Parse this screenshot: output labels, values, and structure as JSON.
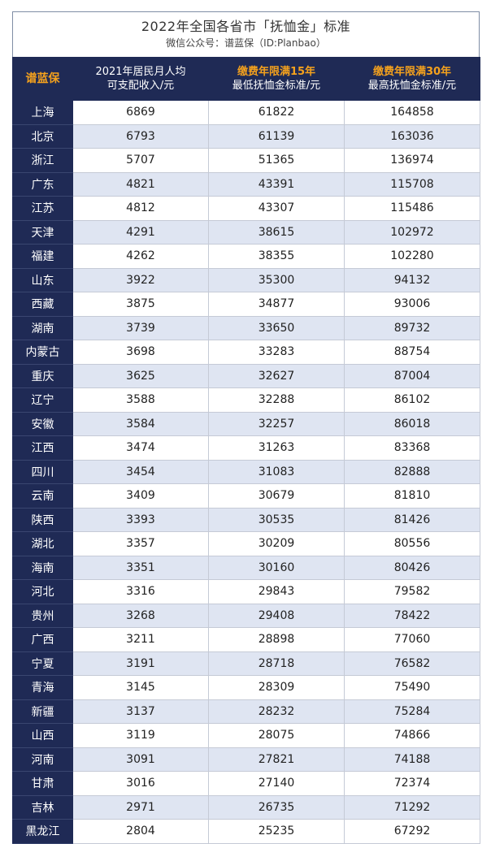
{
  "title": "2022年全国各省市「抚恤金」标准",
  "subtitle": "微信公众号：谱蓝保（ID:Planbao）",
  "header": {
    "brand": "谱蓝保",
    "col1_line1": "2021年居民月人均",
    "col1_line2": "可支配收入/元",
    "col2_line1": "缴费年限满15年",
    "col2_line2": "最低抚恤金标准/元",
    "col3_line1": "缴费年限满30年",
    "col3_line2": "最高抚恤金标准/元"
  },
  "rows": [
    {
      "province": "上海",
      "income": "6869",
      "min": "61822",
      "max": "164858"
    },
    {
      "province": "北京",
      "income": "6793",
      "min": "61139",
      "max": "163036"
    },
    {
      "province": "浙江",
      "income": "5707",
      "min": "51365",
      "max": "136974"
    },
    {
      "province": "广东",
      "income": "4821",
      "min": "43391",
      "max": "115708"
    },
    {
      "province": "江苏",
      "income": "4812",
      "min": "43307",
      "max": "115486"
    },
    {
      "province": "天津",
      "income": "4291",
      "min": "38615",
      "max": "102972"
    },
    {
      "province": "福建",
      "income": "4262",
      "min": "38355",
      "max": "102280"
    },
    {
      "province": "山东",
      "income": "3922",
      "min": "35300",
      "max": "94132"
    },
    {
      "province": "西藏",
      "income": "3875",
      "min": "34877",
      "max": "93006"
    },
    {
      "province": "湖南",
      "income": "3739",
      "min": "33650",
      "max": "89732"
    },
    {
      "province": "内蒙古",
      "income": "3698",
      "min": "33283",
      "max": "88754"
    },
    {
      "province": "重庆",
      "income": "3625",
      "min": "32627",
      "max": "87004"
    },
    {
      "province": "辽宁",
      "income": "3588",
      "min": "32288",
      "max": "86102"
    },
    {
      "province": "安徽",
      "income": "3584",
      "min": "32257",
      "max": "86018"
    },
    {
      "province": "江西",
      "income": "3474",
      "min": "31263",
      "max": "83368"
    },
    {
      "province": "四川",
      "income": "3454",
      "min": "31083",
      "max": "82888"
    },
    {
      "province": "云南",
      "income": "3409",
      "min": "30679",
      "max": "81810"
    },
    {
      "province": "陕西",
      "income": "3393",
      "min": "30535",
      "max": "81426"
    },
    {
      "province": "湖北",
      "income": "3357",
      "min": "30209",
      "max": "80556"
    },
    {
      "province": "海南",
      "income": "3351",
      "min": "30160",
      "max": "80426"
    },
    {
      "province": "河北",
      "income": "3316",
      "min": "29843",
      "max": "79582"
    },
    {
      "province": "贵州",
      "income": "3268",
      "min": "29408",
      "max": "78422"
    },
    {
      "province": "广西",
      "income": "3211",
      "min": "28898",
      "max": "77060"
    },
    {
      "province": "宁夏",
      "income": "3191",
      "min": "28718",
      "max": "76582"
    },
    {
      "province": "青海",
      "income": "3145",
      "min": "28309",
      "max": "75490"
    },
    {
      "province": "新疆",
      "income": "3137",
      "min": "28232",
      "max": "75284"
    },
    {
      "province": "山西",
      "income": "3119",
      "min": "28075",
      "max": "74866"
    },
    {
      "province": "河南",
      "income": "3091",
      "min": "27821",
      "max": "74188"
    },
    {
      "province": "甘肃",
      "income": "3016",
      "min": "27140",
      "max": "72374"
    },
    {
      "province": "吉林",
      "income": "2971",
      "min": "26735",
      "max": "71292"
    },
    {
      "province": "黑龙江",
      "income": "2804",
      "min": "25235",
      "max": "67292"
    }
  ]
}
